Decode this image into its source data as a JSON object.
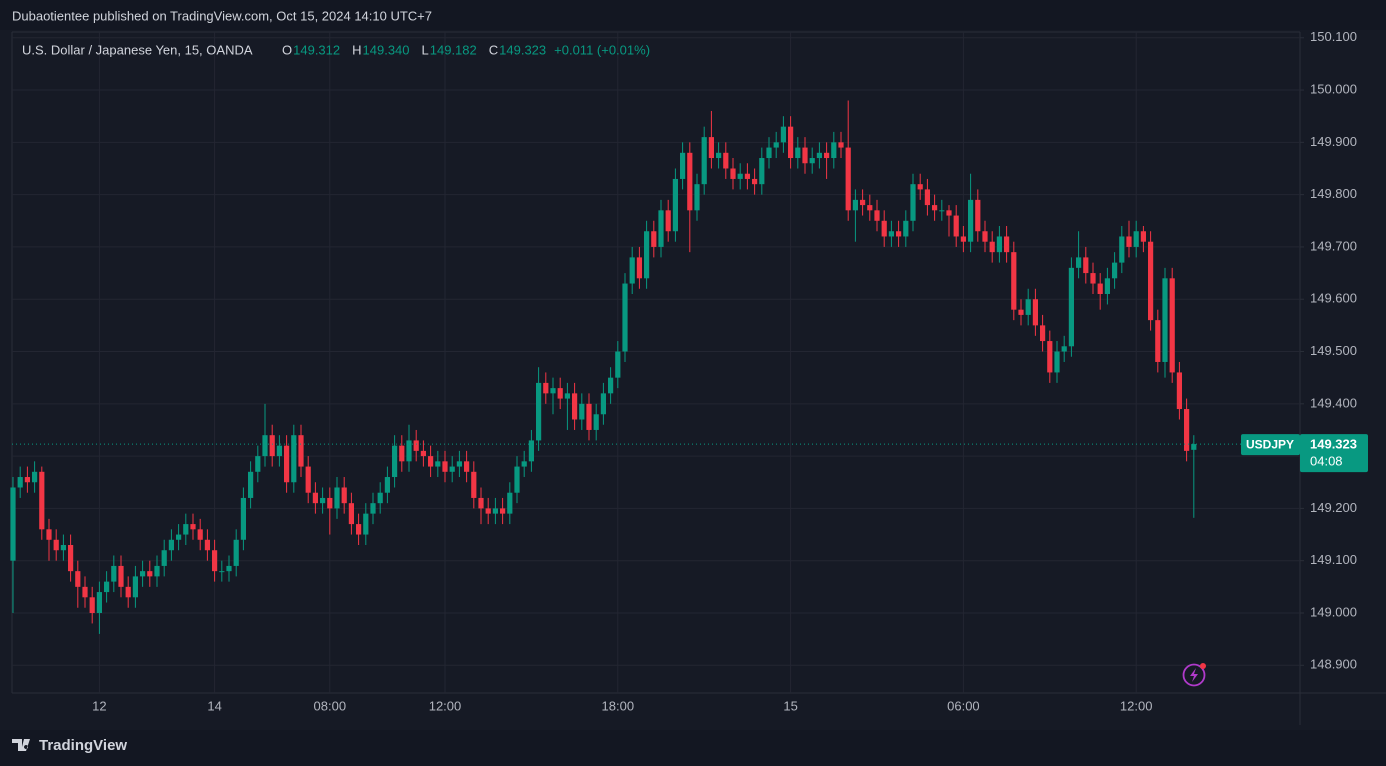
{
  "header": {
    "published": "Dubaotientee published on TradingView.com, Oct 15, 2024 14:10 UTC+7",
    "brand": "TradingView"
  },
  "chart_data": {
    "type": "candlestick",
    "title": "U.S. Dollar / Japanese Yen, 15, OANDA",
    "ohlc_legend": [
      {
        "key": "O",
        "value": "149.312"
      },
      {
        "key": "H",
        "value": "149.340"
      },
      {
        "key": "L",
        "value": "149.182"
      },
      {
        "key": "C",
        "value": "149.323"
      }
    ],
    "change": "+0.011 (+0.01%)",
    "symbol_tag": "USDJPY",
    "countdown": "04:08",
    "up_color": "#089981",
    "down_color": "#f23645",
    "grid": true,
    "x": [
      null,
      null,
      null,
      null,
      null,
      null,
      null,
      null,
      null,
      null,
      null,
      null,
      "12",
      null,
      null,
      null,
      null,
      null,
      null,
      null,
      null,
      null,
      null,
      null,
      null,
      null,
      null,
      null,
      "14",
      null,
      null,
      null,
      null,
      null,
      null,
      null,
      null,
      null,
      null,
      null,
      null,
      null,
      null,
      null,
      "08:00",
      null,
      null,
      null,
      null,
      null,
      null,
      null,
      null,
      null,
      null,
      null,
      null,
      null,
      null,
      null,
      "12:00",
      null,
      null,
      null,
      null,
      null,
      null,
      null,
      null,
      null,
      null,
      null,
      null,
      null,
      null,
      null,
      null,
      null,
      null,
      null,
      null,
      null,
      null,
      null,
      "18:00",
      null,
      null,
      null,
      null,
      null,
      null,
      null,
      null,
      null,
      null,
      null,
      null,
      null,
      null,
      null,
      null,
      null,
      null,
      null,
      null,
      null,
      null,
      null,
      "15",
      null,
      null,
      null,
      null,
      null,
      null,
      null,
      null,
      null,
      null,
      null,
      null,
      null,
      null,
      null,
      null,
      null,
      null,
      null,
      null,
      null,
      null,
      null,
      "06:00",
      null,
      null,
      null,
      null,
      null,
      null,
      null,
      null,
      null,
      null,
      null,
      null,
      null,
      null,
      null,
      null,
      null,
      null,
      null,
      null,
      null,
      null,
      null,
      "12:00",
      null,
      null,
      null,
      null,
      null,
      null,
      null,
      null
    ],
    "open": [
      149.1,
      149.24,
      149.26,
      149.25,
      149.27,
      149.16,
      149.14,
      149.12,
      149.13,
      149.08,
      149.05,
      149.03,
      149.0,
      149.04,
      149.06,
      149.09,
      149.05,
      149.03,
      149.07,
      149.08,
      149.07,
      149.09,
      149.12,
      149.14,
      149.15,
      149.17,
      149.16,
      149.14,
      149.12,
      149.08,
      149.08,
      149.09,
      149.14,
      149.22,
      149.27,
      149.3,
      149.34,
      149.3,
      149.32,
      149.25,
      149.34,
      149.28,
      149.23,
      149.21,
      149.22,
      149.2,
      149.24,
      149.21,
      149.17,
      149.15,
      149.19,
      149.21,
      149.23,
      149.26,
      149.32,
      149.29,
      149.33,
      149.31,
      149.3,
      149.28,
      149.29,
      149.27,
      149.28,
      149.29,
      149.27,
      149.22,
      149.2,
      149.19,
      149.2,
      149.19,
      149.23,
      149.28,
      149.29,
      149.33,
      149.44,
      149.42,
      149.43,
      149.41,
      149.42,
      149.37,
      149.4,
      149.35,
      149.38,
      149.42,
      149.45,
      149.5,
      149.63,
      149.68,
      149.64,
      149.73,
      149.7,
      149.77,
      149.73,
      149.83,
      149.88,
      149.77,
      149.82,
      149.91,
      149.87,
      149.88,
      149.85,
      149.83,
      149.84,
      149.83,
      149.82,
      149.87,
      149.89,
      149.9,
      149.93,
      149.87,
      149.89,
      149.86,
      149.87,
      149.88,
      149.87,
      149.9,
      149.89,
      149.77,
      149.79,
      149.78,
      149.77,
      149.75,
      149.72,
      149.73,
      149.72,
      149.75,
      149.82,
      149.81,
      149.78,
      149.77,
      149.77,
      149.76,
      149.72,
      149.71,
      149.79,
      149.73,
      149.71,
      149.69,
      149.72,
      149.69,
      149.58,
      149.57,
      149.6,
      149.55,
      149.52,
      149.46,
      149.5,
      149.51,
      149.66,
      149.68,
      149.65,
      149.63,
      149.61,
      149.64,
      149.67,
      149.72,
      149.7,
      149.73,
      149.71,
      149.56,
      149.48,
      149.64,
      149.46,
      149.39,
      149.312
    ],
    "high": [
      149.26,
      149.28,
      149.28,
      149.29,
      149.28,
      149.18,
      149.16,
      149.15,
      149.15,
      149.1,
      149.07,
      149.05,
      149.06,
      149.08,
      149.11,
      149.11,
      149.07,
      149.09,
      149.1,
      149.1,
      149.11,
      149.14,
      149.16,
      149.17,
      149.19,
      149.19,
      149.18,
      149.16,
      149.14,
      149.1,
      149.11,
      149.16,
      149.24,
      149.29,
      149.32,
      149.4,
      149.36,
      149.34,
      149.34,
      149.36,
      149.36,
      149.3,
      149.25,
      149.24,
      149.24,
      149.26,
      149.26,
      149.23,
      149.19,
      149.21,
      149.23,
      149.25,
      149.28,
      149.34,
      149.34,
      149.36,
      149.35,
      149.33,
      149.32,
      149.31,
      149.31,
      149.3,
      149.31,
      149.31,
      149.29,
      149.24,
      149.22,
      149.22,
      149.22,
      149.25,
      149.3,
      149.31,
      149.35,
      149.47,
      149.46,
      149.45,
      149.45,
      149.44,
      149.44,
      149.42,
      149.42,
      149.4,
      149.44,
      149.47,
      149.52,
      149.65,
      149.7,
      149.7,
      149.75,
      149.75,
      149.79,
      149.79,
      149.85,
      149.9,
      149.9,
      149.84,
      149.93,
      149.96,
      149.9,
      149.9,
      149.87,
      149.86,
      149.86,
      149.85,
      149.89,
      149.91,
      149.92,
      149.95,
      149.95,
      149.91,
      149.91,
      149.89,
      149.9,
      149.9,
      149.92,
      149.92,
      149.98,
      149.81,
      149.81,
      149.8,
      149.79,
      149.77,
      149.75,
      149.75,
      149.77,
      149.84,
      149.84,
      149.83,
      149.8,
      149.79,
      149.78,
      149.78,
      149.74,
      149.84,
      149.81,
      149.75,
      149.73,
      149.74,
      149.74,
      149.71,
      149.6,
      149.62,
      149.62,
      149.57,
      149.54,
      149.52,
      149.53,
      149.68,
      149.73,
      149.7,
      149.67,
      149.65,
      149.66,
      149.69,
      149.74,
      149.75,
      149.75,
      149.74,
      149.73,
      149.58,
      149.66,
      149.66,
      149.48,
      149.41,
      149.34
    ],
    "low": [
      149.0,
      149.22,
      149.23,
      149.23,
      149.14,
      149.1,
      149.1,
      149.1,
      149.06,
      149.01,
      149.01,
      148.98,
      148.96,
      149.02,
      149.04,
      149.03,
      149.01,
      149.01,
      149.05,
      149.05,
      149.05,
      149.07,
      149.1,
      149.12,
      149.13,
      149.14,
      149.12,
      149.1,
      149.06,
      149.06,
      149.06,
      149.07,
      149.12,
      149.2,
      149.25,
      149.28,
      149.28,
      149.28,
      149.23,
      149.23,
      149.26,
      149.21,
      149.19,
      149.19,
      149.15,
      149.18,
      149.19,
      149.15,
      149.13,
      149.13,
      149.17,
      149.19,
      149.21,
      149.24,
      149.27,
      149.27,
      149.29,
      149.28,
      149.26,
      149.26,
      149.25,
      149.25,
      149.26,
      149.25,
      149.2,
      149.17,
      149.17,
      149.17,
      149.17,
      149.17,
      149.21,
      149.26,
      149.27,
      149.31,
      149.4,
      149.38,
      149.39,
      149.35,
      149.35,
      149.35,
      149.33,
      149.33,
      149.36,
      149.4,
      149.43,
      149.48,
      149.61,
      149.62,
      149.62,
      149.68,
      149.68,
      149.71,
      149.71,
      149.81,
      149.69,
      149.75,
      149.8,
      149.85,
      149.85,
      149.83,
      149.81,
      149.81,
      149.81,
      149.8,
      149.8,
      149.85,
      149.87,
      149.88,
      149.85,
      149.85,
      149.84,
      149.84,
      149.85,
      149.83,
      149.85,
      149.87,
      149.75,
      149.71,
      149.76,
      149.75,
      149.73,
      149.7,
      149.7,
      149.7,
      149.7,
      149.73,
      149.79,
      149.76,
      149.75,
      149.75,
      149.72,
      149.7,
      149.69,
      149.69,
      149.71,
      149.69,
      149.67,
      149.67,
      149.67,
      149.56,
      149.55,
      149.55,
      149.53,
      149.5,
      149.44,
      149.44,
      149.48,
      149.49,
      149.64,
      149.63,
      149.61,
      149.58,
      149.59,
      149.62,
      149.65,
      149.68,
      149.68,
      149.69,
      149.54,
      149.46,
      149.45,
      149.44,
      149.37,
      149.29,
      149.182
    ],
    "close": [
      149.24,
      149.26,
      149.25,
      149.27,
      149.16,
      149.14,
      149.12,
      149.13,
      149.08,
      149.05,
      149.03,
      149.0,
      149.04,
      149.06,
      149.09,
      149.05,
      149.03,
      149.07,
      149.08,
      149.07,
      149.09,
      149.12,
      149.14,
      149.15,
      149.17,
      149.16,
      149.14,
      149.12,
      149.08,
      149.08,
      149.09,
      149.14,
      149.22,
      149.27,
      149.3,
      149.34,
      149.3,
      149.32,
      149.25,
      149.34,
      149.28,
      149.23,
      149.21,
      149.22,
      149.2,
      149.24,
      149.21,
      149.17,
      149.15,
      149.19,
      149.21,
      149.23,
      149.26,
      149.32,
      149.29,
      149.33,
      149.31,
      149.3,
      149.28,
      149.29,
      149.27,
      149.28,
      149.29,
      149.27,
      149.22,
      149.2,
      149.19,
      149.2,
      149.19,
      149.23,
      149.28,
      149.29,
      149.33,
      149.44,
      149.42,
      149.43,
      149.41,
      149.42,
      149.37,
      149.4,
      149.35,
      149.38,
      149.42,
      149.45,
      149.5,
      149.63,
      149.68,
      149.64,
      149.73,
      149.7,
      149.77,
      149.73,
      149.83,
      149.88,
      149.77,
      149.82,
      149.91,
      149.87,
      149.88,
      149.85,
      149.83,
      149.84,
      149.83,
      149.82,
      149.87,
      149.89,
      149.9,
      149.93,
      149.87,
      149.89,
      149.86,
      149.87,
      149.88,
      149.87,
      149.9,
      149.89,
      149.77,
      149.79,
      149.78,
      149.77,
      149.75,
      149.72,
      149.73,
      149.72,
      149.75,
      149.82,
      149.81,
      149.78,
      149.77,
      149.77,
      149.76,
      149.72,
      149.71,
      149.79,
      149.73,
      149.71,
      149.69,
      149.72,
      149.69,
      149.58,
      149.57,
      149.6,
      149.55,
      149.52,
      149.46,
      149.5,
      149.51,
      149.66,
      149.68,
      149.65,
      149.63,
      149.61,
      149.64,
      149.67,
      149.72,
      149.7,
      149.73,
      149.71,
      149.56,
      149.48,
      149.64,
      149.46,
      149.39,
      149.31,
      149.323
    ],
    "ylim": [
      148.847,
      150.111
    ],
    "yticks": [
      {
        "value": 148.9,
        "label": "148.900"
      },
      {
        "value": 149.0,
        "label": "149.000"
      },
      {
        "value": 149.1,
        "label": "149.100"
      },
      {
        "value": 149.2,
        "label": "149.200"
      },
      {
        "value": 149.3,
        "label": "149.300"
      },
      {
        "value": 149.4,
        "label": "149.400"
      },
      {
        "value": 149.5,
        "label": "149.500"
      },
      {
        "value": 149.6,
        "label": "149.600"
      },
      {
        "value": 149.7,
        "label": "149.700"
      },
      {
        "value": 149.8,
        "label": "149.800"
      },
      {
        "value": 149.9,
        "label": "149.900"
      },
      {
        "value": 150.0,
        "label": "150.000"
      },
      {
        "value": 150.1,
        "label": "150.100"
      }
    ]
  }
}
